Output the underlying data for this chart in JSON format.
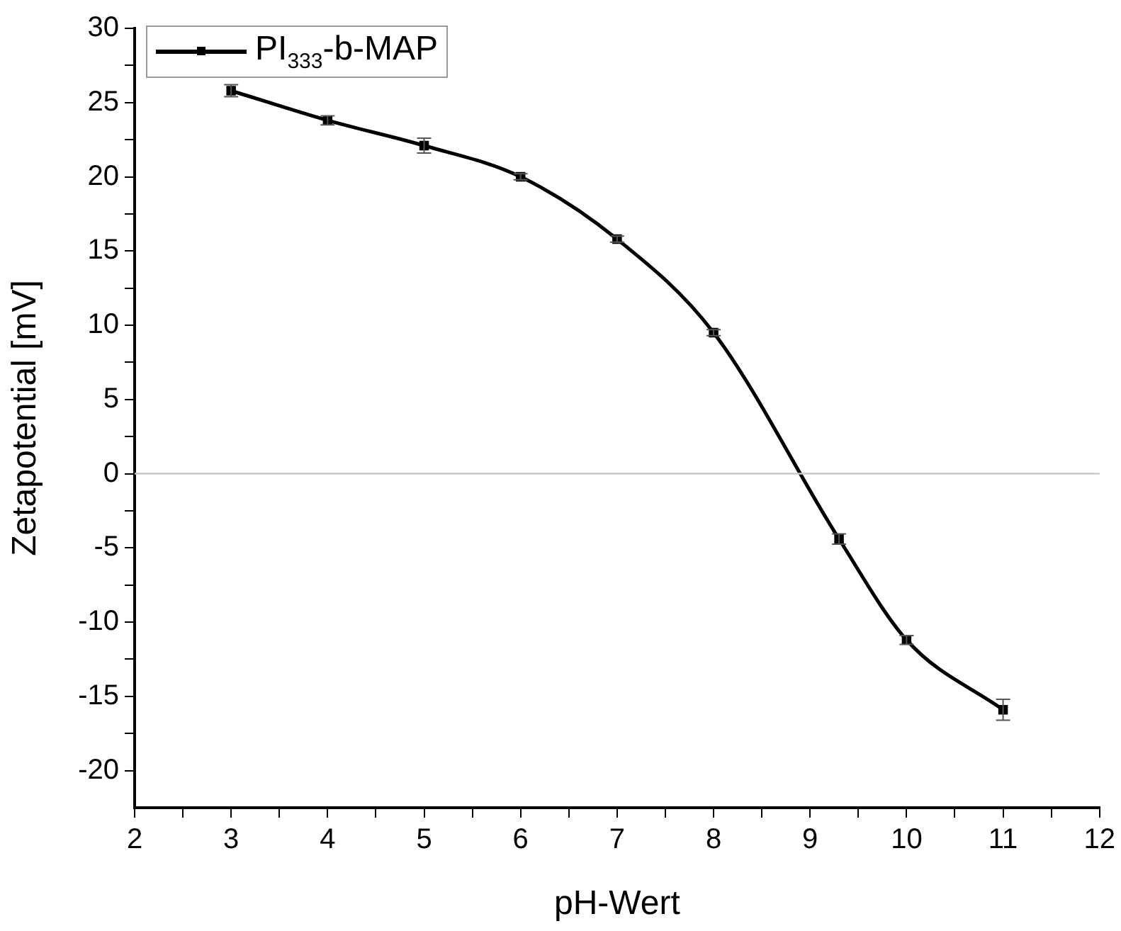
{
  "chart_data": {
    "type": "line",
    "xlabel": "pH-Wert",
    "ylabel": "Zetapotential [mV]",
    "x": [
      3,
      4,
      5,
      6,
      7,
      8,
      9.3,
      10,
      11
    ],
    "series": [
      {
        "name": "PI$_{333}$-b-MAP",
        "color": "#000000",
        "values": [
          25.8,
          23.8,
          22.1,
          20.0,
          15.8,
          9.5,
          -4.4,
          -11.2,
          -15.9
        ],
        "errors": [
          0.4,
          0.3,
          0.5,
          0.2,
          0.2,
          0.2,
          0.35,
          0.3,
          0.7
        ]
      }
    ],
    "xlim": [
      2,
      12
    ],
    "xticks": [
      2,
      {
        "value": 2.5,
        "label": null
      },
      3,
      {
        "value": 3.5,
        "label": null
      },
      4,
      {
        "value": 4.5,
        "label": null
      },
      5,
      {
        "value": 5.5,
        "label": null
      },
      6,
      {
        "value": 6.5,
        "label": null
      },
      7,
      {
        "value": 7.5,
        "label": null
      },
      8,
      {
        "value": 8.5,
        "label": null
      },
      9,
      {
        "value": 9.5,
        "label": null
      },
      10,
      {
        "value": 10.5,
        "label": null
      },
      11,
      {
        "value": 11.5,
        "label": null
      },
      12
    ],
    "ylim": [
      -22.5,
      30
    ],
    "yticks": [
      -20,
      {
        "value": -17.5,
        "label": null
      },
      -15,
      {
        "value": -12.5,
        "label": null
      },
      -10,
      {
        "value": -7.5,
        "label": null
      },
      -5,
      {
        "value": -2.5,
        "label": null
      },
      0,
      {
        "value": 2.5,
        "label": null
      },
      5,
      {
        "value": 7.5,
        "label": null
      },
      10,
      {
        "value": 12.5,
        "label": null
      },
      15,
      {
        "value": 17.5,
        "label": null
      },
      20,
      {
        "value": 22.5,
        "label": null
      },
      25,
      {
        "value": 27.5,
        "label": null
      },
      30
    ],
    "ref_lines": [
      {
        "axis": "y",
        "value": 0,
        "color": "#c8c8c8"
      }
    ],
    "legend": "top left",
    "marker": "square",
    "line_style": "solid"
  }
}
